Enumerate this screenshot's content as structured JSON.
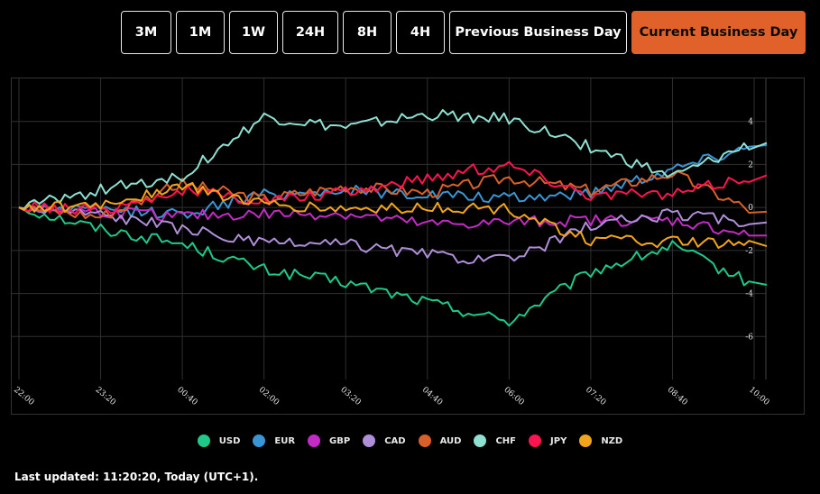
{
  "range_buttons": [
    {
      "label": "3M",
      "active": false
    },
    {
      "label": "1M",
      "active": false
    },
    {
      "label": "1W",
      "active": false
    },
    {
      "label": "24H",
      "active": false
    },
    {
      "label": "8H",
      "active": false
    },
    {
      "label": "4H",
      "active": false
    },
    {
      "label": "Previous Business Day",
      "active": false
    },
    {
      "label": "Current Business Day",
      "active": true
    }
  ],
  "chart_data": {
    "type": "line",
    "x": [
      "22:00",
      "23:20",
      "00:40",
      "02:00",
      "03:20",
      "04:40",
      "06:00",
      "07:20",
      "08:40",
      "10:00"
    ],
    "ylim": [
      -8,
      6
    ],
    "yticks": [
      -6,
      -4,
      -2,
      0,
      2,
      4
    ],
    "grid": true,
    "legend_position": "bottom",
    "series": [
      {
        "name": "USD",
        "color": "#1ec98a",
        "values": [
          0,
          -1.0,
          -1.7,
          -2.9,
          -3.5,
          -4.4,
          -5.3,
          -3.0,
          -1.8,
          -3.6
        ]
      },
      {
        "name": "EUR",
        "color": "#3a95d4",
        "values": [
          0,
          -0.1,
          -0.3,
          0.6,
          0.8,
          0.6,
          0.4,
          0.7,
          1.8,
          2.9
        ]
      },
      {
        "name": "GBP",
        "color": "#c42bc4",
        "values": [
          0,
          -0.2,
          -0.4,
          -0.3,
          -0.3,
          -0.8,
          -0.7,
          -0.6,
          -0.6,
          -1.3
        ]
      },
      {
        "name": "CAD",
        "color": "#b08fd9",
        "values": [
          0,
          -0.3,
          -1.0,
          -1.7,
          -1.7,
          -2.2,
          -2.5,
          -0.8,
          -0.3,
          -0.7
        ]
      },
      {
        "name": "AUD",
        "color": "#d9602a",
        "values": [
          0,
          -0.4,
          1.1,
          0.4,
          1.0,
          0.7,
          1.4,
          0.8,
          1.6,
          -0.2
        ]
      },
      {
        "name": "CHF",
        "color": "#8ee0d0",
        "values": [
          0,
          0.8,
          1.5,
          4.2,
          3.7,
          4.3,
          4.1,
          2.8,
          1.4,
          3.0
        ]
      },
      {
        "name": "JPY",
        "color": "#ff1450",
        "values": [
          0,
          -0.1,
          0.8,
          0.3,
          0.7,
          1.4,
          2.0,
          0.6,
          0.6,
          1.5
        ]
      },
      {
        "name": "NZD",
        "color": "#f2a51a",
        "values": [
          0,
          0.1,
          1.0,
          0.1,
          -0.1,
          0.0,
          -0.1,
          -1.5,
          -1.6,
          -1.8
        ]
      }
    ]
  },
  "footer": {
    "last_updated": "Last updated: 11:20:20, Today (UTC+1)."
  }
}
